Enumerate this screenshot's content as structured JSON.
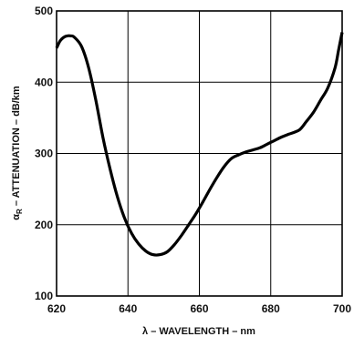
{
  "chart_data": {
    "type": "line",
    "xlabel_symbol": "λ",
    "xlabel_text": " – WAVELENGTH – nm",
    "ylabel_symbol": "α",
    "ylabel_subscript": "R",
    "ylabel_text": " – ATTENUATION – dB/km",
    "xlim": [
      620,
      700
    ],
    "ylim": [
      100,
      500
    ],
    "x_ticks": [
      620,
      640,
      660,
      680,
      700
    ],
    "y_ticks": [
      100,
      200,
      300,
      400,
      500
    ],
    "grid": true,
    "line_color": "#000000",
    "series": [
      {
        "x": [
          620,
          621,
          622,
          623,
          624,
          625,
          627,
          629,
          631,
          633,
          635,
          637,
          639,
          641,
          643,
          645,
          647,
          649,
          651,
          653,
          655,
          657,
          659,
          661,
          663,
          665,
          667,
          669,
          671,
          673,
          675,
          677,
          679,
          681,
          683,
          685,
          688,
          690,
          692,
          694,
          696,
          698,
          699,
          700
        ],
        "y": [
          448,
          458,
          463,
          465,
          465,
          463,
          450,
          420,
          375,
          322,
          278,
          240,
          210,
          188,
          173,
          163,
          158,
          158,
          162,
          172,
          185,
          200,
          215,
          232,
          250,
          267,
          282,
          293,
          298,
          302,
          305,
          308,
          313,
          318,
          323,
          327,
          333,
          345,
          358,
          375,
          392,
          420,
          445,
          470
        ]
      }
    ]
  }
}
